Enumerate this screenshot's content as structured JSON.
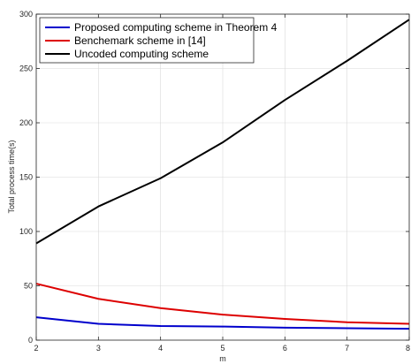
{
  "chart_data": {
    "type": "line",
    "title": "",
    "xlabel": "m",
    "ylabel": "Total process time(s)",
    "xlim": [
      2,
      8
    ],
    "ylim": [
      0,
      300
    ],
    "x_ticks": [
      2,
      3,
      4,
      5,
      6,
      7,
      8
    ],
    "y_ticks": [
      0,
      50,
      100,
      150,
      200,
      250,
      300
    ],
    "grid": true,
    "legend_position": "top-left",
    "x": [
      2,
      3,
      4,
      5,
      6,
      7,
      8
    ],
    "series": [
      {
        "name": "Proposed computing scheme in Theorem 4",
        "color": "#0000cc",
        "values": [
          21,
          15,
          13,
          12.5,
          11.5,
          11,
          10.5
        ]
      },
      {
        "name": "Benchemark scheme in [14]",
        "color": "#dd0000",
        "values": [
          52,
          38,
          29.5,
          23.5,
          19.5,
          16.5,
          15
        ]
      },
      {
        "name": "Uncoded computing scheme",
        "color": "#000000",
        "values": [
          89,
          123,
          149,
          182,
          221,
          257,
          295
        ]
      }
    ]
  }
}
